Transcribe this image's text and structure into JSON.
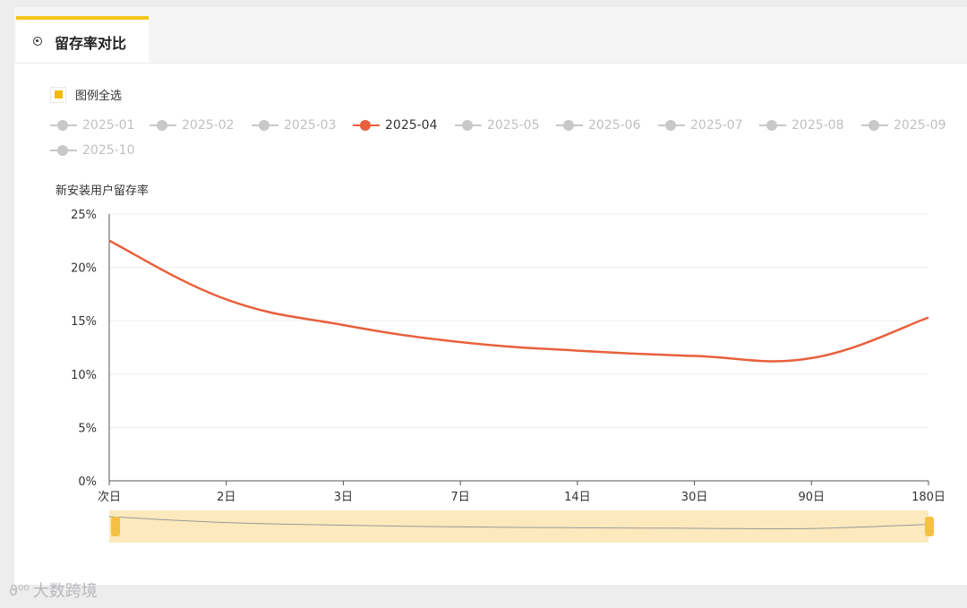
{
  "tab": {
    "label": "留存率对比"
  },
  "legend": {
    "select_all": "图例全选",
    "items": [
      {
        "label": "2025-01",
        "active": false
      },
      {
        "label": "2025-02",
        "active": false
      },
      {
        "label": "2025-03",
        "active": false
      },
      {
        "label": "2025-04",
        "active": true
      },
      {
        "label": "2025-05",
        "active": false
      },
      {
        "label": "2025-06",
        "active": false
      },
      {
        "label": "2025-07",
        "active": false
      },
      {
        "label": "2025-08",
        "active": false
      },
      {
        "label": "2025-09",
        "active": false
      },
      {
        "label": "2025-10",
        "active": false
      }
    ]
  },
  "colors": {
    "accent": "#f5c518",
    "series": "#e8603c",
    "inactive": "#c8c8c8",
    "zoom_fill": "#fce9bd",
    "zoom_handle": "#f5c043"
  },
  "watermark": {
    "text": "大数跨境"
  },
  "chart_data": {
    "type": "line",
    "ylabel": "新安装用户留存率",
    "categories": [
      "次日",
      "2日",
      "3日",
      "7日",
      "14日",
      "30日",
      "90日",
      "180日"
    ],
    "y_ticks": [
      "0%",
      "5%",
      "10%",
      "15%",
      "20%",
      "25%"
    ],
    "ylim": [
      0,
      25
    ],
    "grid": true,
    "smooth": true,
    "series": [
      {
        "name": "2025-04",
        "values": [
          22.5,
          17.0,
          14.6,
          13.0,
          12.2,
          11.7,
          11.5,
          15.3
        ]
      }
    ]
  }
}
